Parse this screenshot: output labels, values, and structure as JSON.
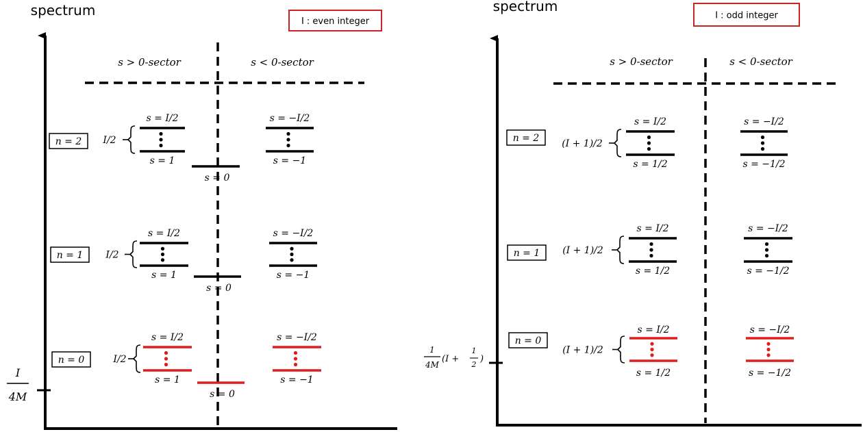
{
  "colors": {
    "ink": "#000000",
    "ground": "#e21b1b",
    "frame": "#cc2222"
  },
  "panels": [
    {
      "title": "spectrum",
      "condition": "I : even integer",
      "sector_pos": "s > 0-sector",
      "sector_neg": "s < 0-sector",
      "axis_tick": {
        "num": "I",
        "den": "4M"
      },
      "levels": [
        {
          "n": "n = 2",
          "bracket": "I/2",
          "top_pos": "s = I/2",
          "bot_pos": "s = 1",
          "top_neg": "s = −I/2",
          "bot_neg": "s = −1",
          "zero": "s = 0",
          "ground": false
        },
        {
          "n": "n = 1",
          "bracket": "I/2",
          "top_pos": "s = I/2",
          "bot_pos": "s = 1",
          "top_neg": "s = −I/2",
          "bot_neg": "s = −1",
          "zero": "s = 0",
          "ground": false
        },
        {
          "n": "n = 0",
          "bracket": "I/2",
          "top_pos": "s = I/2",
          "bot_pos": "s = 1",
          "top_neg": "s = −I/2",
          "bot_neg": "s = −1",
          "zero": "s = 0",
          "ground": true
        }
      ]
    },
    {
      "title": "spectrum",
      "condition": "I : odd integer",
      "sector_pos": "s > 0-sector",
      "sector_neg": "s < 0-sector",
      "axis_tick": {
        "num": "1",
        "den": "4M",
        "tail": "(I + ",
        "half_num": "1",
        "half_den": "2",
        "close": ")"
      },
      "levels": [
        {
          "n": "n = 2",
          "bracket": "(I + 1)/2",
          "top_pos": "s = I/2",
          "bot_pos": "s = 1/2",
          "top_neg": "s = −I/2",
          "bot_neg": "s = −1/2",
          "ground": false
        },
        {
          "n": "n = 1",
          "bracket": "(I + 1)/2",
          "top_pos": "s = I/2",
          "bot_pos": "s = 1/2",
          "top_neg": "s = −I/2",
          "bot_neg": "s = −1/2",
          "ground": false
        },
        {
          "n": "n = 0",
          "bracket": "(I + 1)/2",
          "top_pos": "s = I/2",
          "bot_pos": "s = 1/2",
          "top_neg": "s = −I/2",
          "bot_neg": "s = −1/2",
          "ground": true
        }
      ]
    }
  ]
}
